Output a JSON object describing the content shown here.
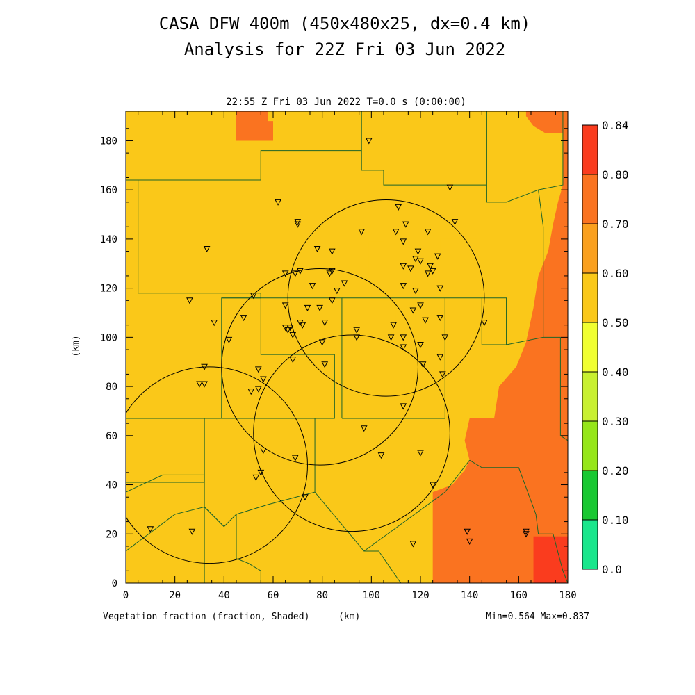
{
  "title_line1": "CASA DFW 400m (450x480x25, dx=0.4 km)",
  "title_line2": "Analysis for 22Z Fri 03 Jun 2022",
  "valid_time": "22:55 Z Fri 03 Jun 2022   T=0.0 s (0:00:00)",
  "field_label": "Vegetation fraction (fraction, Shaded)",
  "min_max": "Min=0.564 Max=0.837",
  "colors": {
    "lvl_0_0": "#19e68c",
    "lvl_0_1": "#19c832",
    "lvl_0_2": "#96e619",
    "lvl_0_3": "#c8f030",
    "lvl_0_4": "#f0ff30",
    "lvl_0_5": "#fac819",
    "lvl_0_6": "#faa01e",
    "lvl_0_7": "#fa7320",
    "lvl_0_8": "#fa3c1e",
    "boundary": "#1e6428"
  },
  "chart_data": {
    "type": "heatmap",
    "xlabel": "(km)",
    "ylabel": "(km)",
    "xlim": [
      0,
      180
    ],
    "ylim": [
      0,
      192
    ],
    "xticks": [
      0,
      20,
      40,
      60,
      80,
      100,
      120,
      140,
      160,
      180
    ],
    "yticks": [
      0,
      20,
      40,
      60,
      80,
      100,
      120,
      140,
      160,
      180
    ],
    "colorbar": {
      "levels": [
        0.0,
        0.1,
        0.2,
        0.3,
        0.4,
        0.5,
        0.6,
        0.7,
        0.8,
        0.84
      ],
      "labels": [
        "0.0",
        "0.10",
        "0.20",
        "0.30",
        "0.40",
        "0.50",
        "0.60",
        "0.70",
        "0.80",
        "0.84"
      ]
    },
    "min": 0.564,
    "max": 0.837,
    "regions": [
      {
        "value": 0.55,
        "polygon": [
          [
            99,
            139
          ],
          [
            105,
            139
          ],
          [
            105,
            150
          ],
          [
            110,
            150
          ],
          [
            110,
            162
          ],
          [
            132,
            162
          ],
          [
            138,
            162
          ],
          [
            138,
            150
          ],
          [
            143,
            150
          ],
          [
            143,
            140
          ],
          [
            128,
            140
          ],
          [
            128,
            135
          ],
          [
            118,
            135
          ],
          [
            118,
            102
          ],
          [
            110,
            102
          ],
          [
            110,
            115
          ],
          [
            100,
            115
          ],
          [
            100,
            118
          ],
          [
            99,
            118
          ]
        ]
      },
      {
        "value": 0.75,
        "polygon": [
          [
            45,
            192
          ],
          [
            58,
            192
          ],
          [
            58,
            188
          ],
          [
            60,
            188
          ],
          [
            60,
            180
          ],
          [
            45,
            180
          ]
        ]
      },
      {
        "value": 0.75,
        "polygon": [
          [
            163,
            192
          ],
          [
            180,
            192
          ],
          [
            180,
            0
          ],
          [
            125,
            0
          ],
          [
            125,
            37
          ],
          [
            133,
            40
          ],
          [
            138,
            46
          ],
          [
            140,
            50
          ],
          [
            138,
            58
          ],
          [
            140,
            67
          ],
          [
            150,
            67
          ],
          [
            152,
            80
          ],
          [
            159,
            88
          ],
          [
            163,
            98
          ],
          [
            166,
            112
          ],
          [
            168,
            125
          ],
          [
            172,
            135
          ],
          [
            174,
            146
          ],
          [
            176,
            155
          ],
          [
            178,
            162
          ],
          [
            178,
            183
          ],
          [
            171,
            183
          ],
          [
            166,
            186
          ],
          [
            163,
            190
          ]
        ]
      },
      {
        "value": 0.82,
        "polygon": [
          [
            166,
            19
          ],
          [
            180,
            19
          ],
          [
            180,
            0
          ],
          [
            166,
            0
          ]
        ]
      }
    ],
    "boundaries": [
      [
        [
          0,
          164
        ],
        [
          5,
          164
        ],
        [
          5,
          118
        ],
        [
          55,
          118
        ],
        [
          55,
          93
        ],
        [
          85,
          93
        ],
        [
          85,
          67
        ],
        [
          0,
          67
        ]
      ],
      [
        [
          5,
          164
        ],
        [
          55,
          164
        ],
        [
          55,
          176
        ],
        [
          96,
          176
        ],
        [
          96,
          192
        ]
      ],
      [
        [
          55,
          176
        ],
        [
          55,
          164
        ]
      ],
      [
        [
          96,
          176
        ],
        [
          96,
          168
        ],
        [
          105,
          168
        ],
        [
          105,
          162
        ],
        [
          147,
          162
        ],
        [
          147,
          192
        ]
      ],
      [
        [
          147,
          162
        ],
        [
          147,
          155
        ],
        [
          155,
          155
        ],
        [
          168,
          160
        ],
        [
          178,
          162
        ],
        [
          178,
          192
        ]
      ],
      [
        [
          55,
          118
        ],
        [
          55,
          116
        ],
        [
          39,
          116
        ],
        [
          39,
          67
        ]
      ],
      [
        [
          39,
          116
        ],
        [
          88,
          116
        ],
        [
          88,
          67
        ]
      ],
      [
        [
          88,
          116
        ],
        [
          130,
          116
        ],
        [
          130,
          67
        ],
        [
          88,
          67
        ]
      ],
      [
        [
          130,
          116
        ],
        [
          155,
          116
        ],
        [
          155,
          97
        ],
        [
          145,
          97
        ],
        [
          145,
          116
        ]
      ],
      [
        [
          155,
          116
        ],
        [
          155,
          97
        ],
        [
          170,
          100
        ],
        [
          170,
          145
        ],
        [
          168,
          160
        ]
      ],
      [
        [
          0,
          67
        ],
        [
          0,
          0
        ]
      ],
      [
        [
          0,
          67
        ],
        [
          32,
          67
        ],
        [
          32,
          41
        ],
        [
          0,
          41
        ]
      ],
      [
        [
          32,
          67
        ],
        [
          32,
          0
        ]
      ],
      [
        [
          0,
          37
        ],
        [
          15,
          44
        ],
        [
          32,
          44
        ]
      ],
      [
        [
          0,
          13
        ],
        [
          20,
          28
        ],
        [
          32,
          31
        ],
        [
          40,
          23
        ],
        [
          45,
          28
        ],
        [
          45,
          10
        ],
        [
          50,
          8
        ],
        [
          55,
          5
        ],
        [
          55,
          0
        ]
      ],
      [
        [
          32,
          31
        ],
        [
          40,
          23
        ]
      ],
      [
        [
          45,
          28
        ],
        [
          58,
          32
        ],
        [
          77,
          37
        ],
        [
          77,
          67
        ]
      ],
      [
        [
          77,
          37
        ],
        [
          97,
          13
        ],
        [
          103,
          13
        ],
        [
          112,
          0
        ]
      ],
      [
        [
          97,
          13
        ],
        [
          130,
          37
        ],
        [
          140,
          50
        ]
      ],
      [
        [
          140,
          50
        ],
        [
          145,
          47
        ],
        [
          160,
          47
        ],
        [
          167,
          28
        ],
        [
          168,
          20
        ],
        [
          174,
          20
        ],
        [
          178,
          5
        ],
        [
          180,
          0
        ]
      ],
      [
        [
          170,
          100
        ],
        [
          177,
          100
        ],
        [
          177,
          60
        ],
        [
          180,
          58
        ]
      ]
    ],
    "range_rings": [
      {
        "center": [
          34,
          48
        ],
        "radius": 40
      },
      {
        "center": [
          79,
          88
        ],
        "radius": 40
      },
      {
        "center": [
          106,
          116
        ],
        "radius": 40
      },
      {
        "center": [
          92,
          61
        ],
        "radius": 40
      }
    ],
    "stations": [
      [
        99,
        180
      ],
      [
        62,
        155
      ],
      [
        70,
        147
      ],
      [
        70,
        146
      ],
      [
        33,
        136
      ],
      [
        111,
        153
      ],
      [
        114,
        146
      ],
      [
        123,
        143
      ],
      [
        134,
        147
      ],
      [
        132,
        161
      ],
      [
        96,
        143
      ],
      [
        110,
        143
      ],
      [
        78,
        136
      ],
      [
        84,
        135
      ],
      [
        113,
        139
      ],
      [
        119,
        135
      ],
      [
        118,
        132
      ],
      [
        116,
        128
      ],
      [
        113,
        129
      ],
      [
        124,
        129
      ],
      [
        120,
        131
      ],
      [
        125,
        127
      ],
      [
        127,
        133
      ],
      [
        123,
        126
      ],
      [
        128,
        120
      ],
      [
        69,
        126
      ],
      [
        65,
        126
      ],
      [
        71,
        127
      ],
      [
        83,
        126
      ],
      [
        84,
        127
      ],
      [
        89,
        122
      ],
      [
        86,
        119
      ],
      [
        76,
        121
      ],
      [
        113,
        121
      ],
      [
        118,
        119
      ],
      [
        120,
        113
      ],
      [
        117,
        111
      ],
      [
        122,
        107
      ],
      [
        128,
        108
      ],
      [
        146,
        106
      ],
      [
        26,
        115
      ],
      [
        52,
        117
      ],
      [
        65,
        113
      ],
      [
        74,
        112
      ],
      [
        79,
        112
      ],
      [
        84,
        115
      ],
      [
        36,
        106
      ],
      [
        48,
        108
      ],
      [
        65,
        104
      ],
      [
        67,
        104
      ],
      [
        66,
        103
      ],
      [
        71,
        106
      ],
      [
        72,
        105
      ],
      [
        68,
        101
      ],
      [
        81,
        106
      ],
      [
        94,
        103
      ],
      [
        109,
        105
      ],
      [
        113,
        100
      ],
      [
        108,
        100
      ],
      [
        120,
        97
      ],
      [
        130,
        100
      ],
      [
        42,
        99
      ],
      [
        80,
        98
      ],
      [
        94,
        100
      ],
      [
        68,
        91
      ],
      [
        32,
        88
      ],
      [
        54,
        87
      ],
      [
        56,
        83
      ],
      [
        113,
        96
      ],
      [
        121,
        89
      ],
      [
        128,
        92
      ],
      [
        129,
        85
      ],
      [
        81,
        89
      ],
      [
        30,
        81
      ],
      [
        32,
        81
      ],
      [
        51,
        78
      ],
      [
        54,
        79
      ],
      [
        113,
        72
      ],
      [
        97,
        63
      ],
      [
        56,
        54
      ],
      [
        69,
        51
      ],
      [
        104,
        52
      ],
      [
        120,
        53
      ],
      [
        53,
        43
      ],
      [
        55,
        45
      ],
      [
        125,
        40
      ],
      [
        73,
        35
      ],
      [
        10,
        22
      ],
      [
        27,
        21
      ],
      [
        139,
        21
      ],
      [
        140,
        17
      ],
      [
        117,
        16
      ],
      [
        163,
        21
      ],
      [
        163,
        20
      ]
    ]
  }
}
